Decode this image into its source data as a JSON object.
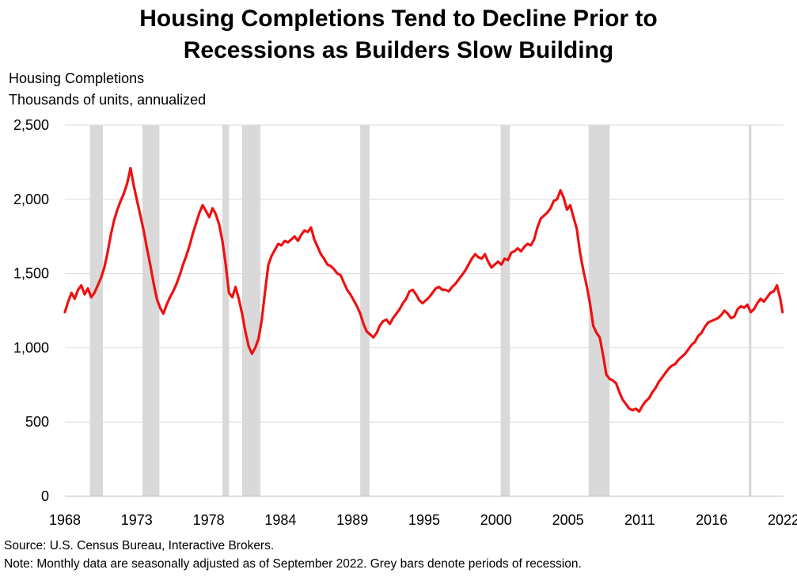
{
  "chart_data": {
    "type": "line",
    "title_lines": [
      "Housing Completions Tend to Decline Prior to",
      "Recessions as Builders Slow Building"
    ],
    "ylabel_lines": [
      "Housing Completions",
      "Thousands of units, annualized"
    ],
    "xlabel": "",
    "x_ticks": [
      "1968",
      "1973",
      "1978",
      "1984",
      "1989",
      "1995",
      "2000",
      "2005",
      "2011",
      "2016",
      "2022"
    ],
    "x_range": [
      1968.0,
      2022.75
    ],
    "y_ticks": [
      "0",
      "500",
      "1,000",
      "1,500",
      "2,000",
      "2,500"
    ],
    "ylim": [
      0,
      2500
    ],
    "grid": true,
    "line_color": "#ee1111",
    "recession_color": "#d9d9d9",
    "recessions": [
      {
        "start": 1969.9,
        "end": 1970.9
      },
      {
        "start": 1973.9,
        "end": 1975.2
      },
      {
        "start": 1980.0,
        "end": 1980.5
      },
      {
        "start": 1981.5,
        "end": 1982.9
      },
      {
        "start": 1990.5,
        "end": 1991.2
      },
      {
        "start": 2001.2,
        "end": 2001.9
      },
      {
        "start": 2007.9,
        "end": 2009.5
      },
      {
        "start": 2020.1,
        "end": 2020.3
      }
    ],
    "series": [
      {
        "values": [
          [
            1968.0,
            1240
          ],
          [
            1968.25,
            1310
          ],
          [
            1968.5,
            1370
          ],
          [
            1968.75,
            1330
          ],
          [
            1969.0,
            1390
          ],
          [
            1969.25,
            1420
          ],
          [
            1969.5,
            1360
          ],
          [
            1969.75,
            1400
          ],
          [
            1970.0,
            1340
          ],
          [
            1970.25,
            1370
          ],
          [
            1970.5,
            1420
          ],
          [
            1970.75,
            1470
          ],
          [
            1971.0,
            1540
          ],
          [
            1971.25,
            1640
          ],
          [
            1971.5,
            1760
          ],
          [
            1971.75,
            1860
          ],
          [
            1972.0,
            1930
          ],
          [
            1972.25,
            1990
          ],
          [
            1972.5,
            2040
          ],
          [
            1972.75,
            2110
          ],
          [
            1973.0,
            2210
          ],
          [
            1973.25,
            2090
          ],
          [
            1973.5,
            1990
          ],
          [
            1973.75,
            1890
          ],
          [
            1974.0,
            1790
          ],
          [
            1974.25,
            1670
          ],
          [
            1974.5,
            1560
          ],
          [
            1974.75,
            1440
          ],
          [
            1975.0,
            1330
          ],
          [
            1975.25,
            1270
          ],
          [
            1975.5,
            1230
          ],
          [
            1975.75,
            1290
          ],
          [
            1976.0,
            1340
          ],
          [
            1976.25,
            1380
          ],
          [
            1976.5,
            1430
          ],
          [
            1976.75,
            1490
          ],
          [
            1977.0,
            1560
          ],
          [
            1977.25,
            1620
          ],
          [
            1977.5,
            1690
          ],
          [
            1977.75,
            1770
          ],
          [
            1978.0,
            1840
          ],
          [
            1978.25,
            1910
          ],
          [
            1978.5,
            1960
          ],
          [
            1978.75,
            1920
          ],
          [
            1979.0,
            1880
          ],
          [
            1979.25,
            1940
          ],
          [
            1979.5,
            1900
          ],
          [
            1979.75,
            1830
          ],
          [
            1980.0,
            1720
          ],
          [
            1980.25,
            1560
          ],
          [
            1980.5,
            1370
          ],
          [
            1980.75,
            1340
          ],
          [
            1981.0,
            1410
          ],
          [
            1981.25,
            1330
          ],
          [
            1981.5,
            1230
          ],
          [
            1981.75,
            1110
          ],
          [
            1982.0,
            1010
          ],
          [
            1982.25,
            960
          ],
          [
            1982.5,
            1000
          ],
          [
            1982.75,
            1060
          ],
          [
            1983.0,
            1190
          ],
          [
            1983.25,
            1380
          ],
          [
            1983.5,
            1560
          ],
          [
            1983.75,
            1620
          ],
          [
            1984.0,
            1660
          ],
          [
            1984.25,
            1700
          ],
          [
            1984.5,
            1690
          ],
          [
            1984.75,
            1720
          ],
          [
            1985.0,
            1710
          ],
          [
            1985.25,
            1730
          ],
          [
            1985.5,
            1750
          ],
          [
            1985.75,
            1720
          ],
          [
            1986.0,
            1760
          ],
          [
            1986.25,
            1790
          ],
          [
            1986.5,
            1780
          ],
          [
            1986.75,
            1810
          ],
          [
            1987.0,
            1730
          ],
          [
            1987.25,
            1680
          ],
          [
            1987.5,
            1630
          ],
          [
            1987.75,
            1600
          ],
          [
            1988.0,
            1560
          ],
          [
            1988.25,
            1550
          ],
          [
            1988.5,
            1530
          ],
          [
            1988.75,
            1500
          ],
          [
            1989.0,
            1490
          ],
          [
            1989.25,
            1440
          ],
          [
            1989.5,
            1390
          ],
          [
            1989.75,
            1360
          ],
          [
            1990.0,
            1320
          ],
          [
            1990.25,
            1280
          ],
          [
            1990.5,
            1230
          ],
          [
            1990.75,
            1160
          ],
          [
            1991.0,
            1110
          ],
          [
            1991.25,
            1090
          ],
          [
            1991.5,
            1070
          ],
          [
            1991.75,
            1100
          ],
          [
            1992.0,
            1150
          ],
          [
            1992.25,
            1180
          ],
          [
            1992.5,
            1190
          ],
          [
            1992.75,
            1160
          ],
          [
            1993.0,
            1200
          ],
          [
            1993.25,
            1230
          ],
          [
            1993.5,
            1260
          ],
          [
            1993.75,
            1300
          ],
          [
            1994.0,
            1330
          ],
          [
            1994.25,
            1380
          ],
          [
            1994.5,
            1390
          ],
          [
            1994.75,
            1360
          ],
          [
            1995.0,
            1320
          ],
          [
            1995.25,
            1300
          ],
          [
            1995.5,
            1320
          ],
          [
            1995.75,
            1340
          ],
          [
            1996.0,
            1370
          ],
          [
            1996.25,
            1400
          ],
          [
            1996.5,
            1410
          ],
          [
            1996.75,
            1390
          ],
          [
            1997.0,
            1390
          ],
          [
            1997.25,
            1380
          ],
          [
            1997.5,
            1410
          ],
          [
            1997.75,
            1430
          ],
          [
            1998.0,
            1460
          ],
          [
            1998.25,
            1490
          ],
          [
            1998.5,
            1520
          ],
          [
            1998.75,
            1560
          ],
          [
            1999.0,
            1600
          ],
          [
            1999.25,
            1630
          ],
          [
            1999.5,
            1610
          ],
          [
            1999.75,
            1600
          ],
          [
            2000.0,
            1630
          ],
          [
            2000.25,
            1580
          ],
          [
            2000.5,
            1540
          ],
          [
            2000.75,
            1560
          ],
          [
            2001.0,
            1580
          ],
          [
            2001.25,
            1560
          ],
          [
            2001.5,
            1600
          ],
          [
            2001.75,
            1590
          ],
          [
            2002.0,
            1640
          ],
          [
            2002.25,
            1650
          ],
          [
            2002.5,
            1670
          ],
          [
            2002.75,
            1650
          ],
          [
            2003.0,
            1680
          ],
          [
            2003.25,
            1700
          ],
          [
            2003.5,
            1690
          ],
          [
            2003.75,
            1730
          ],
          [
            2004.0,
            1810
          ],
          [
            2004.25,
            1870
          ],
          [
            2004.5,
            1890
          ],
          [
            2004.75,
            1910
          ],
          [
            2005.0,
            1940
          ],
          [
            2005.25,
            1990
          ],
          [
            2005.5,
            2000
          ],
          [
            2005.75,
            2060
          ],
          [
            2006.0,
            2010
          ],
          [
            2006.25,
            1930
          ],
          [
            2006.5,
            1960
          ],
          [
            2006.75,
            1880
          ],
          [
            2007.0,
            1800
          ],
          [
            2007.25,
            1640
          ],
          [
            2007.5,
            1520
          ],
          [
            2007.75,
            1420
          ],
          [
            2008.0,
            1300
          ],
          [
            2008.25,
            1150
          ],
          [
            2008.5,
            1100
          ],
          [
            2008.75,
            1070
          ],
          [
            2009.0,
            950
          ],
          [
            2009.25,
            820
          ],
          [
            2009.5,
            790
          ],
          [
            2009.75,
            780
          ],
          [
            2010.0,
            760
          ],
          [
            2010.25,
            700
          ],
          [
            2010.5,
            650
          ],
          [
            2010.75,
            620
          ],
          [
            2011.0,
            590
          ],
          [
            2011.25,
            580
          ],
          [
            2011.5,
            590
          ],
          [
            2011.75,
            570
          ],
          [
            2012.0,
            610
          ],
          [
            2012.25,
            640
          ],
          [
            2012.5,
            660
          ],
          [
            2012.75,
            700
          ],
          [
            2013.0,
            730
          ],
          [
            2013.25,
            770
          ],
          [
            2013.5,
            800
          ],
          [
            2013.75,
            830
          ],
          [
            2014.0,
            860
          ],
          [
            2014.25,
            880
          ],
          [
            2014.5,
            890
          ],
          [
            2014.75,
            920
          ],
          [
            2015.0,
            940
          ],
          [
            2015.25,
            960
          ],
          [
            2015.5,
            990
          ],
          [
            2015.75,
            1020
          ],
          [
            2016.0,
            1040
          ],
          [
            2016.25,
            1080
          ],
          [
            2016.5,
            1100
          ],
          [
            2016.75,
            1140
          ],
          [
            2017.0,
            1170
          ],
          [
            2017.25,
            1180
          ],
          [
            2017.5,
            1190
          ],
          [
            2017.75,
            1200
          ],
          [
            2018.0,
            1220
          ],
          [
            2018.25,
            1250
          ],
          [
            2018.5,
            1230
          ],
          [
            2018.75,
            1200
          ],
          [
            2019.0,
            1210
          ],
          [
            2019.25,
            1260
          ],
          [
            2019.5,
            1280
          ],
          [
            2019.75,
            1270
          ],
          [
            2020.0,
            1290
          ],
          [
            2020.25,
            1240
          ],
          [
            2020.5,
            1260
          ],
          [
            2020.75,
            1300
          ],
          [
            2021.0,
            1330
          ],
          [
            2021.25,
            1310
          ],
          [
            2021.5,
            1340
          ],
          [
            2021.75,
            1370
          ],
          [
            2022.0,
            1380
          ],
          [
            2022.25,
            1420
          ],
          [
            2022.5,
            1330
          ],
          [
            2022.67,
            1240
          ]
        ]
      }
    ]
  },
  "footnotes": {
    "source": "Source: U.S. Census Bureau, Interactive Brokers.",
    "note": "Note: Monthly data are seasonally adjusted as of September 2022. Grey bars denote periods of recession."
  }
}
